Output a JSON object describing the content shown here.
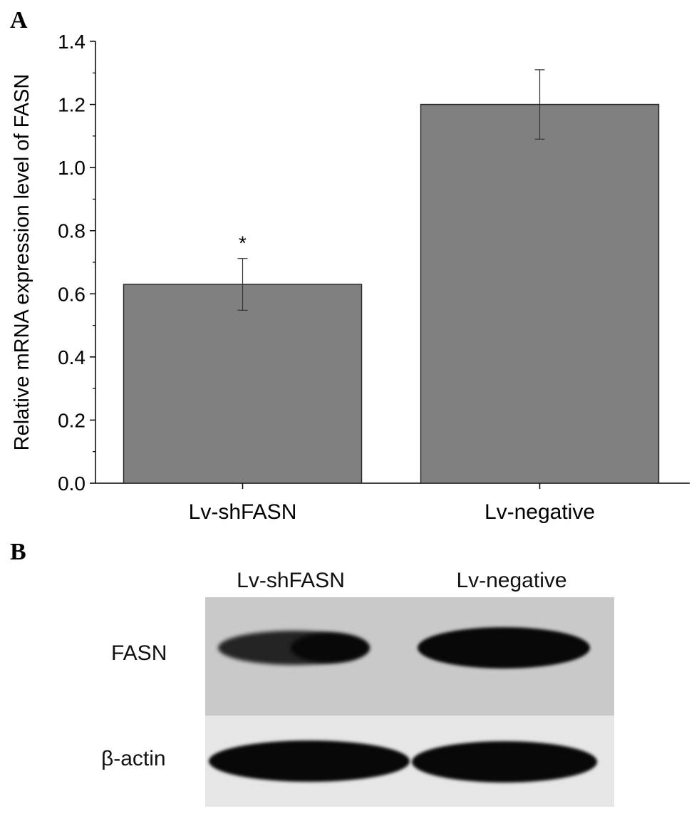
{
  "panel_a_label": "A",
  "panel_b_label": "B",
  "chart_data": {
    "type": "bar",
    "categories": [
      "Lv-shFASN",
      "Lv-negative"
    ],
    "values": [
      0.63,
      1.2
    ],
    "error": [
      0.082,
      0.11
    ],
    "annotations": [
      "*",
      ""
    ],
    "ylabel": "Relative mRNA expression level of FASN",
    "xlabel": "",
    "ylim": [
      0,
      1.4
    ],
    "yticks": [
      "0.0",
      "0.2",
      "0.4",
      "0.6",
      "0.8",
      "1.0",
      "1.2",
      "1.4"
    ],
    "grid": false,
    "bar_color": "#808080"
  },
  "western_blot": {
    "columns": [
      "Lv-shFASN",
      "Lv-negative"
    ],
    "rows": [
      "FASN",
      "β-actin"
    ]
  }
}
